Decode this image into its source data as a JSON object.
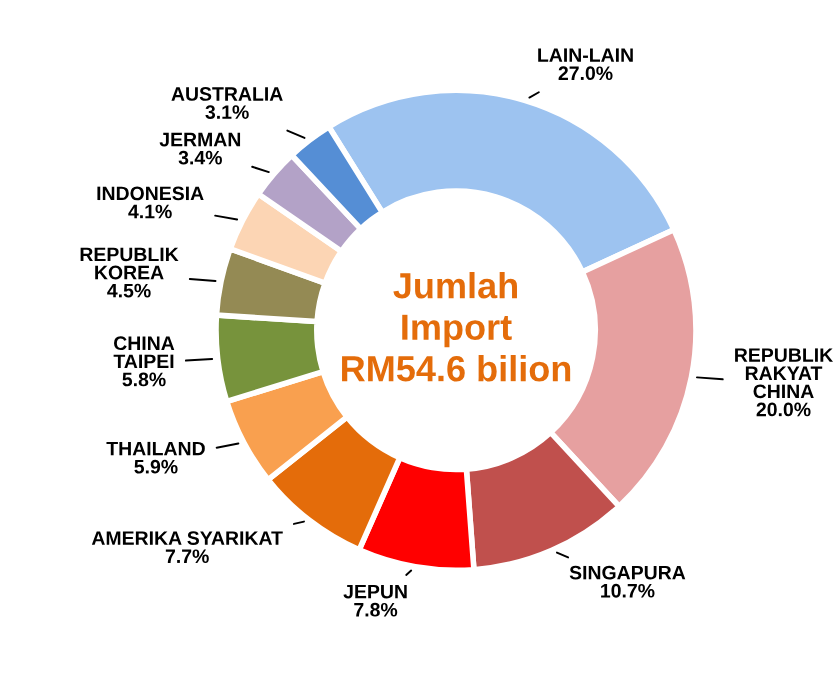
{
  "chart_data": {
    "type": "donut",
    "categories": [
      "LAIN-LAIN",
      "REPUBLIK\nRAKYAT\nCHINA",
      "SINGAPURA",
      "JEPUN",
      "AMERIKA SYARIKAT",
      "THAILAND",
      "CHINA\nTAIPEI",
      "REPUBLIK\nKOREA",
      "INDONESIA",
      "JERMAN",
      "AUSTRALIA"
    ],
    "values": [
      27.0,
      20.0,
      10.7,
      7.8,
      7.7,
      5.9,
      5.8,
      4.5,
      4.1,
      3.4,
      3.1
    ],
    "colors": [
      "#9dc3f0",
      "#e6a0a0",
      "#c0504d",
      "#ff0000",
      "#e46c0a",
      "#f9a04f",
      "#77933c",
      "#948a54",
      "#fcd5b4",
      "#b3a2c7",
      "#558ed5"
    ],
    "value_labels": [
      "27.0%",
      "20.0%",
      "10.7%",
      "7.8%",
      "7.7%",
      "5.9%",
      "5.8%",
      "4.5%",
      "4.1%",
      "3.4%",
      "3.1%"
    ],
    "annotations": [
      "Jumlah\nImport\nRM54.6 bilion"
    ]
  }
}
